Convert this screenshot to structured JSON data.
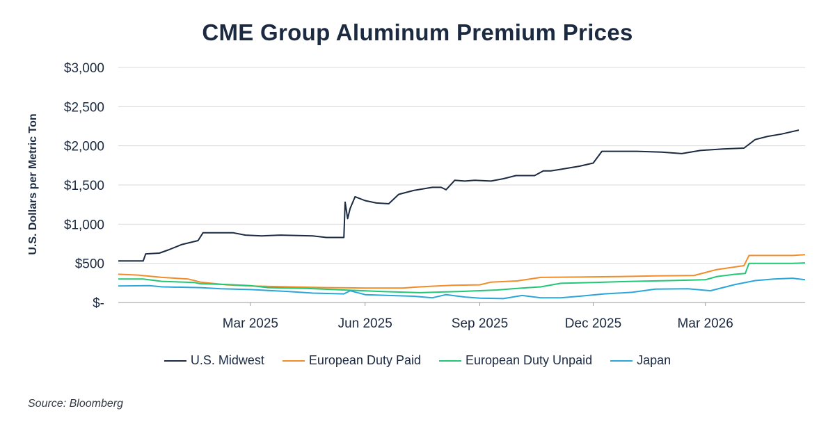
{
  "chart_data": {
    "type": "line",
    "title": "CME Group Aluminum Premium Prices",
    "ylabel": "U.S. Dollars per Metric Ton",
    "xlabel": "",
    "ylim": [
      0,
      3000
    ],
    "xlim": [
      "2024-11-15",
      "2026-05-20"
    ],
    "yticks": [
      0,
      500,
      1000,
      1500,
      2000,
      2500,
      3000
    ],
    "ytick_labels": [
      "$-",
      "$500",
      "$1,000",
      "$1,500",
      "$2,000",
      "$2,500",
      "$3,000"
    ],
    "xticks": [
      "2025-03-01",
      "2025-06-01",
      "2025-09-01",
      "2025-12-01",
      "2026-03-01"
    ],
    "xtick_labels": [
      "Mar 2025",
      "Jun 2025",
      "Sep 2025",
      "Dec 2025",
      "Mar 2026"
    ],
    "grid": true,
    "legend_position": "bottom",
    "series": [
      {
        "name": "U.S. Midwest",
        "color": "#1b2a41",
        "points": [
          [
            "2024-11-15",
            530
          ],
          [
            "2024-11-28",
            530
          ],
          [
            "2024-12-05",
            530
          ],
          [
            "2024-12-07",
            620
          ],
          [
            "2024-12-18",
            630
          ],
          [
            "2024-12-25",
            670
          ],
          [
            "2025-01-05",
            740
          ],
          [
            "2025-01-18",
            790
          ],
          [
            "2025-01-22",
            890
          ],
          [
            "2025-02-15",
            890
          ],
          [
            "2025-02-25",
            860
          ],
          [
            "2025-03-10",
            850
          ],
          [
            "2025-03-25",
            860
          ],
          [
            "2025-04-20",
            850
          ],
          [
            "2025-05-01",
            830
          ],
          [
            "2025-05-15",
            830
          ],
          [
            "2025-05-16",
            1280
          ],
          [
            "2025-05-18",
            1070
          ],
          [
            "2025-05-20",
            1200
          ],
          [
            "2025-05-24",
            1350
          ],
          [
            "2025-06-01",
            1300
          ],
          [
            "2025-06-10",
            1270
          ],
          [
            "2025-06-20",
            1260
          ],
          [
            "2025-06-28",
            1380
          ],
          [
            "2025-07-10",
            1430
          ],
          [
            "2025-07-25",
            1470
          ],
          [
            "2025-08-01",
            1470
          ],
          [
            "2025-08-05",
            1440
          ],
          [
            "2025-08-12",
            1560
          ],
          [
            "2025-08-20",
            1550
          ],
          [
            "2025-08-28",
            1560
          ],
          [
            "2025-09-10",
            1550
          ],
          [
            "2025-09-20",
            1580
          ],
          [
            "2025-09-30",
            1620
          ],
          [
            "2025-10-15",
            1620
          ],
          [
            "2025-10-22",
            1680
          ],
          [
            "2025-10-28",
            1680
          ],
          [
            "2025-11-05",
            1700
          ],
          [
            "2025-11-20",
            1740
          ],
          [
            "2025-12-01",
            1780
          ],
          [
            "2025-12-08",
            1930
          ],
          [
            "2026-01-05",
            1930
          ],
          [
            "2026-01-25",
            1920
          ],
          [
            "2026-02-10",
            1900
          ],
          [
            "2026-02-25",
            1940
          ],
          [
            "2026-03-15",
            1960
          ],
          [
            "2026-04-01",
            1970
          ],
          [
            "2026-04-10",
            2080
          ],
          [
            "2026-04-20",
            2120
          ],
          [
            "2026-05-01",
            2150
          ],
          [
            "2026-05-15",
            2200
          ]
        ]
      },
      {
        "name": "European Duty Paid",
        "color": "#f28c28",
        "points": [
          [
            "2024-11-15",
            360
          ],
          [
            "2024-12-01",
            350
          ],
          [
            "2024-12-20",
            320
          ],
          [
            "2025-01-10",
            300
          ],
          [
            "2025-01-20",
            260
          ],
          [
            "2025-02-10",
            225
          ],
          [
            "2025-03-01",
            210
          ],
          [
            "2025-04-01",
            200
          ],
          [
            "2025-05-01",
            190
          ],
          [
            "2025-06-01",
            185
          ],
          [
            "2025-07-01",
            185
          ],
          [
            "2025-07-15",
            200
          ],
          [
            "2025-08-10",
            220
          ],
          [
            "2025-09-01",
            225
          ],
          [
            "2025-09-10",
            260
          ],
          [
            "2025-10-01",
            275
          ],
          [
            "2025-10-20",
            320
          ],
          [
            "2025-11-20",
            325
          ],
          [
            "2025-12-20",
            330
          ],
          [
            "2026-01-20",
            340
          ],
          [
            "2026-02-20",
            345
          ],
          [
            "2026-03-10",
            420
          ],
          [
            "2026-04-01",
            470
          ],
          [
            "2026-04-05",
            600
          ],
          [
            "2026-05-10",
            600
          ],
          [
            "2026-05-20",
            610
          ]
        ]
      },
      {
        "name": "European Duty Unpaid",
        "color": "#22c776",
        "points": [
          [
            "2024-11-15",
            300
          ],
          [
            "2024-12-05",
            300
          ],
          [
            "2024-12-20",
            270
          ],
          [
            "2025-01-15",
            255
          ],
          [
            "2025-01-20",
            240
          ],
          [
            "2025-02-10",
            230
          ],
          [
            "2025-03-01",
            215
          ],
          [
            "2025-03-15",
            190
          ],
          [
            "2025-04-15",
            180
          ],
          [
            "2025-05-15",
            160
          ],
          [
            "2025-06-15",
            140
          ],
          [
            "2025-07-15",
            125
          ],
          [
            "2025-08-15",
            140
          ],
          [
            "2025-09-15",
            160
          ],
          [
            "2025-10-01",
            180
          ],
          [
            "2025-10-20",
            200
          ],
          [
            "2025-11-05",
            245
          ],
          [
            "2025-12-01",
            255
          ],
          [
            "2026-01-01",
            270
          ],
          [
            "2026-02-01",
            280
          ],
          [
            "2026-03-01",
            290
          ],
          [
            "2026-03-10",
            330
          ],
          [
            "2026-03-25",
            360
          ],
          [
            "2026-04-02",
            370
          ],
          [
            "2026-04-05",
            500
          ],
          [
            "2026-05-10",
            500
          ],
          [
            "2026-05-20",
            505
          ]
        ]
      },
      {
        "name": "Japan",
        "color": "#2aa6d9",
        "points": [
          [
            "2024-11-15",
            210
          ],
          [
            "2024-12-10",
            215
          ],
          [
            "2024-12-20",
            200
          ],
          [
            "2025-01-20",
            190
          ],
          [
            "2025-02-05",
            175
          ],
          [
            "2025-03-01",
            165
          ],
          [
            "2025-04-01",
            140
          ],
          [
            "2025-04-20",
            120
          ],
          [
            "2025-05-15",
            110
          ],
          [
            "2025-05-20",
            150
          ],
          [
            "2025-06-01",
            100
          ],
          [
            "2025-06-20",
            90
          ],
          [
            "2025-07-10",
            80
          ],
          [
            "2025-07-25",
            60
          ],
          [
            "2025-08-05",
            100
          ],
          [
            "2025-08-20",
            70
          ],
          [
            "2025-09-01",
            55
          ],
          [
            "2025-09-20",
            50
          ],
          [
            "2025-10-05",
            90
          ],
          [
            "2025-10-20",
            60
          ],
          [
            "2025-11-05",
            60
          ],
          [
            "2025-11-20",
            80
          ],
          [
            "2025-12-10",
            110
          ],
          [
            "2026-01-01",
            130
          ],
          [
            "2026-01-20",
            170
          ],
          [
            "2026-02-15",
            175
          ],
          [
            "2026-03-05",
            150
          ],
          [
            "2026-03-25",
            230
          ],
          [
            "2026-04-10",
            280
          ],
          [
            "2026-04-25",
            300
          ],
          [
            "2026-05-10",
            310
          ],
          [
            "2026-05-20",
            290
          ]
        ]
      }
    ]
  },
  "source": "Source: Bloomberg"
}
